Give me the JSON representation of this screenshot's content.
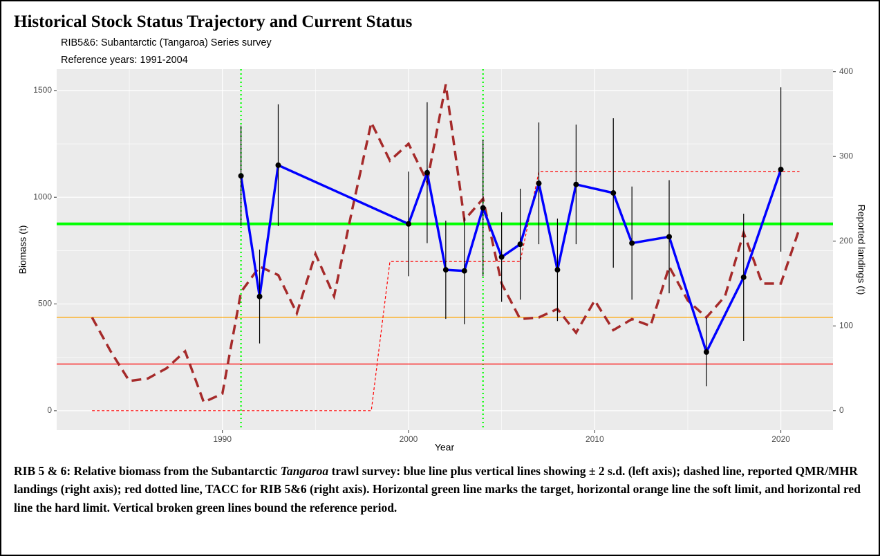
{
  "title": "Historical Stock Status Trajectory and Current Status",
  "chart_data": {
    "type": "line",
    "subtitle": "RIB5&6: Subantarctic (Tangaroa) Series survey",
    "subtitle2": "Reference years: 1991-2004",
    "x_label": "Year",
    "y_label": "Biomass (t)",
    "y2_label": "Reported landings (t)",
    "xlim": [
      1981.1,
      2022.8
    ],
    "xticks": [
      1990,
      2000,
      2010,
      2020
    ],
    "ylim": [
      -91,
      1600
    ],
    "yticks": [
      0,
      500,
      1000,
      1500
    ],
    "y2lim": [
      -23,
      403
    ],
    "y2ticks": [
      0,
      100,
      200,
      300,
      400
    ],
    "grid": true,
    "series": [
      {
        "color": "#0000ff",
        "marker_color": "#000000",
        "x": [
          1991,
          1992,
          1993,
          2000,
          2001,
          2002,
          2003,
          2004,
          2005,
          2006,
          2007,
          2008,
          2009,
          2011,
          2012,
          2014,
          2016,
          2018,
          2020
        ],
        "values": [
          1100,
          535,
          1150,
          875,
          1115,
          660,
          655,
          950,
          720,
          780,
          1065,
          660,
          1060,
          1020,
          785,
          815,
          275,
          625,
          1130
        ],
        "errors": [
          235,
          220,
          285,
          245,
          330,
          230,
          250,
          320,
          210,
          260,
          285,
          240,
          280,
          350,
          265,
          265,
          160,
          298,
          385
        ]
      },
      {
        "color": "#a52a2a",
        "axis": "y2",
        "style": "dashed",
        "x": [
          1983,
          1984,
          1985,
          1986,
          1987,
          1988,
          1989,
          1990,
          1991,
          1992,
          1993,
          1994,
          1995,
          1996,
          1997,
          1998,
          1999,
          2000,
          2001,
          2002,
          2003,
          2004,
          2005,
          2006,
          2007,
          2008,
          2009,
          2010,
          2011,
          2012,
          2013,
          2014,
          2015,
          2016,
          2017,
          2018,
          2019,
          2020,
          2021
        ],
        "values": [
          110,
          70,
          35,
          38,
          50,
          70,
          10,
          20,
          140,
          170,
          160,
          115,
          185,
          135,
          240,
          340,
          295,
          315,
          270,
          385,
          225,
          250,
          150,
          108,
          110,
          120,
          92,
          130,
          95,
          108,
          100,
          170,
          130,
          110,
          135,
          210,
          150,
          150,
          215
        ]
      },
      {
        "color": "#ff0000",
        "axis": "y2",
        "style": "dotted",
        "x": [
          1983,
          1998,
          1999,
          2006,
          2007,
          2021
        ],
        "values": [
          0,
          0,
          176,
          176,
          282,
          282
        ]
      }
    ],
    "hlines": [
      {
        "value": 875,
        "color": "#00ff00"
      },
      {
        "value": 437.5,
        "color": "#ffa500"
      },
      {
        "value": 218.75,
        "color": "#ff0000"
      }
    ],
    "vlines": [
      {
        "value": 1991,
        "color": "#00ff00"
      },
      {
        "value": 2004,
        "color": "#00ff00"
      }
    ]
  },
  "caption": {
    "before": "RIB 5 & 6: Relative biomass from the Subantarctic ",
    "italic": "Tangaroa",
    "after": " trawl survey: blue line plus vertical lines showing ± 2 s.d. (left axis); dashed line, reported QMR/MHR landings (right axis); red dotted line, TACC for RIB 5&6 (right axis). Horizontal green line marks the target, horizontal orange line the soft limit, and horizontal red line the hard limit. Vertical broken green lines bound the reference period."
  }
}
